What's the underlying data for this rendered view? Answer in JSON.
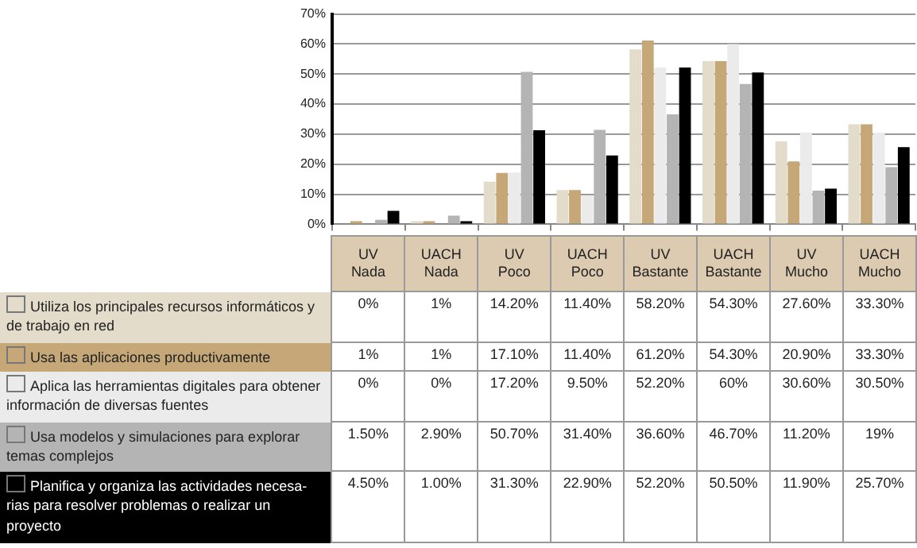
{
  "chart_data": {
    "type": "bar",
    "categories": [
      "UV Nada",
      "UACH Nada",
      "UV Poco",
      "UACH Poco",
      "UV Bastante",
      "UACH Bastante",
      "UV Mucho",
      "UACH Mucho"
    ],
    "series": [
      {
        "name": "Utiliza los principales recursos informáticos y de trabajo en red",
        "color": "#e3dccb",
        "values": [
          0,
          1,
          14.2,
          11.4,
          58.2,
          54.3,
          27.6,
          33.3
        ],
        "value_labels": [
          "0%",
          "1%",
          "14.20%",
          "11.40%",
          "58.20%",
          "54.30%",
          "27.60%",
          "33.30%"
        ]
      },
      {
        "name": "Usa las aplicaciones productivamente",
        "color": "#c6a878",
        "values": [
          1,
          1,
          17.1,
          11.4,
          61.2,
          54.3,
          20.9,
          33.3
        ],
        "value_labels": [
          "1%",
          "1%",
          "17.10%",
          "11.40%",
          "61.20%",
          "54.30%",
          "20.90%",
          "33.30%"
        ]
      },
      {
        "name": "Aplica las herramientas digitales para obtener información de diversas fuentes",
        "color": "#ebebeb",
        "values": [
          0,
          0,
          17.2,
          9.5,
          52.2,
          60,
          30.6,
          30.5
        ],
        "value_labels": [
          "0%",
          "0%",
          "17.20%",
          "9.50%",
          "52.20%",
          "60%",
          "30.60%",
          "30.50%"
        ]
      },
      {
        "name": "Usa modelos y simulaciones para explorar temas complejos",
        "color": "#b4b4b4",
        "values": [
          1.5,
          2.9,
          50.7,
          31.4,
          36.6,
          46.7,
          11.2,
          19
        ],
        "value_labels": [
          "1.50%",
          "2.90%",
          "50.70%",
          "31.40%",
          "36.60%",
          "46.70%",
          "11.20%",
          "19%"
        ]
      },
      {
        "name": "Planifica y organiza las actividades necesa-rias para resolver problemas o realizar un proyecto",
        "color": "#000000",
        "values": [
          4.5,
          1,
          31.3,
          22.9,
          52.2,
          50.5,
          11.9,
          25.7
        ],
        "value_labels": [
          "4.50%",
          "1.00%",
          "31.30%",
          "22.90%",
          "52.20%",
          "50.50%",
          "11.90%",
          "25.70%"
        ]
      }
    ],
    "ylim": [
      0,
      70
    ],
    "yticks": [
      {
        "value": 0,
        "label": "0%"
      },
      {
        "value": 10,
        "label": "10%"
      },
      {
        "value": 20,
        "label": "20%"
      },
      {
        "value": 30,
        "label": "30%"
      },
      {
        "value": 40,
        "label": "40%"
      },
      {
        "value": 50,
        "label": "50%"
      },
      {
        "value": 60,
        "label": "60%"
      },
      {
        "value": 70,
        "label": "70%"
      }
    ],
    "grid": "y",
    "legend": "bottom",
    "tick_labels": "y"
  }
}
